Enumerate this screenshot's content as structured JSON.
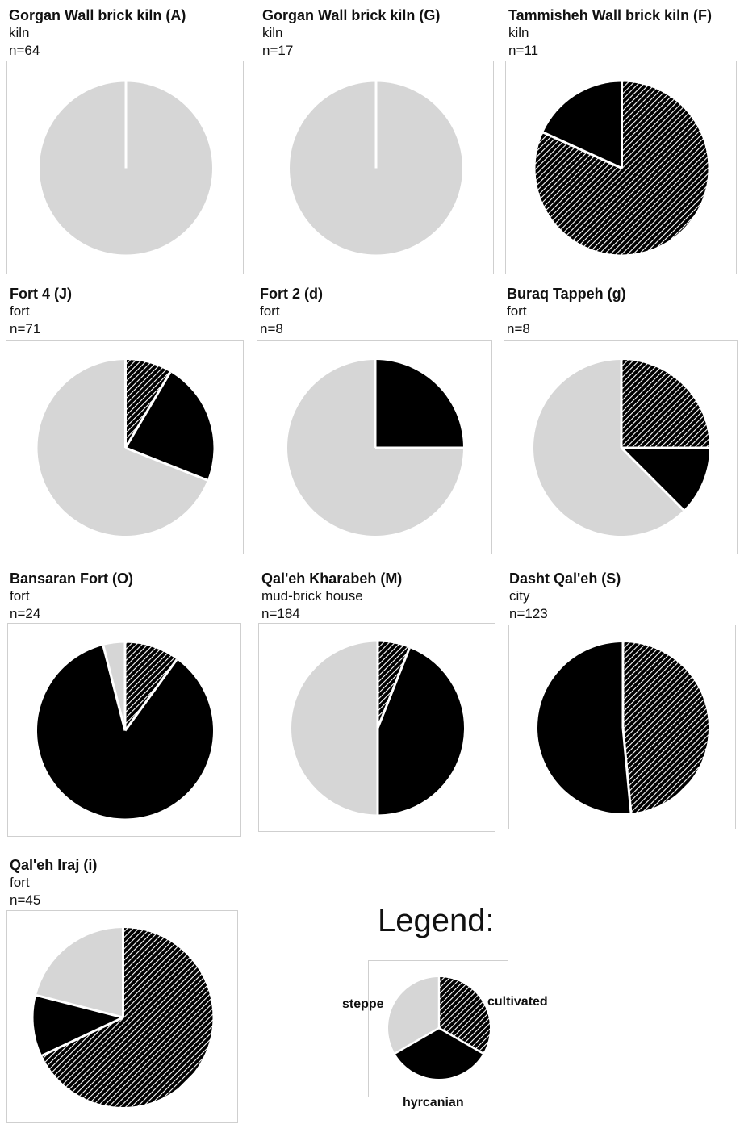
{
  "chart_data": [
    {
      "type": "pie",
      "title": "Gorgan Wall brick kiln (A)",
      "subtitle": "kiln",
      "n_label": "n=64",
      "slices": [
        {
          "category": "cultivated",
          "value": 0
        },
        {
          "category": "hyrcanian",
          "value": 0
        },
        {
          "category": "steppe",
          "value": 100
        }
      ]
    },
    {
      "type": "pie",
      "title": "Gorgan Wall brick kiln (G)",
      "subtitle": "kiln",
      "n_label": "n=17",
      "slices": [
        {
          "category": "cultivated",
          "value": 0
        },
        {
          "category": "hyrcanian",
          "value": 0
        },
        {
          "category": "steppe",
          "value": 100
        }
      ]
    },
    {
      "type": "pie",
      "title": "Tammisheh Wall brick kiln (F)",
      "subtitle": "kiln",
      "n_label": "n=11",
      "slices": [
        {
          "category": "cultivated",
          "value": 81.8
        },
        {
          "category": "hyrcanian",
          "value": 18.2
        },
        {
          "category": "steppe",
          "value": 0
        }
      ]
    },
    {
      "type": "pie",
      "title": "Fort 4 (J)",
      "subtitle": "fort",
      "n_label": "n=71",
      "slices": [
        {
          "category": "cultivated",
          "value": 8.5
        },
        {
          "category": "hyrcanian",
          "value": 22.5
        },
        {
          "category": "steppe",
          "value": 69
        }
      ]
    },
    {
      "type": "pie",
      "title": "Fort 2 (d)",
      "subtitle": "fort",
      "n_label": "n=8",
      "slices": [
        {
          "category": "cultivated",
          "value": 0
        },
        {
          "category": "hyrcanian",
          "value": 25
        },
        {
          "category": "steppe",
          "value": 75
        }
      ]
    },
    {
      "type": "pie",
      "title": "Buraq Tappeh (g)",
      "subtitle": "fort",
      "n_label": "n=8",
      "slices": [
        {
          "category": "cultivated",
          "value": 25
        },
        {
          "category": "hyrcanian",
          "value": 12.5
        },
        {
          "category": "steppe",
          "value": 62.5
        }
      ]
    },
    {
      "type": "pie",
      "title": "Bansaran Fort (O)",
      "subtitle": "fort",
      "n_label": "n=24",
      "slices": [
        {
          "category": "cultivated",
          "value": 10
        },
        {
          "category": "hyrcanian",
          "value": 86
        },
        {
          "category": "steppe",
          "value": 4
        }
      ]
    },
    {
      "type": "pie",
      "title": "Qal'eh Kharabeh (M)",
      "subtitle": "mud-brick house",
      "n_label": "n=184",
      "slices": [
        {
          "category": "cultivated",
          "value": 6
        },
        {
          "category": "hyrcanian",
          "value": 44
        },
        {
          "category": "steppe",
          "value": 50
        }
      ]
    },
    {
      "type": "pie",
      "title": "Dasht Qal'eh (S)",
      "subtitle": "city",
      "n_label": "n=123",
      "slices": [
        {
          "category": "cultivated",
          "value": 48.5
        },
        {
          "category": "hyrcanian",
          "value": 51.5
        },
        {
          "category": "steppe",
          "value": 0
        }
      ]
    },
    {
      "type": "pie",
      "title": "Qal'eh Iraj (i)",
      "subtitle": "fort",
      "n_label": "n=45",
      "slices": [
        {
          "category": "cultivated",
          "value": 68
        },
        {
          "category": "hyrcanian",
          "value": 11
        },
        {
          "category": "steppe",
          "value": 21
        }
      ]
    }
  ],
  "legend": {
    "title": "Legend:",
    "items": [
      {
        "label": "cultivated",
        "fill": "hatch"
      },
      {
        "label": "hyrcanian",
        "fill": "#000000"
      },
      {
        "label": "steppe",
        "fill": "#d6d6d6"
      }
    ]
  },
  "colors": {
    "cultivated_bg": "#000000",
    "cultivated_stripe": "#ffffff",
    "hyrcanian": "#000000",
    "steppe": "#d6d6d6",
    "separator": "#ffffff",
    "frame": "#cfcfcf"
  }
}
